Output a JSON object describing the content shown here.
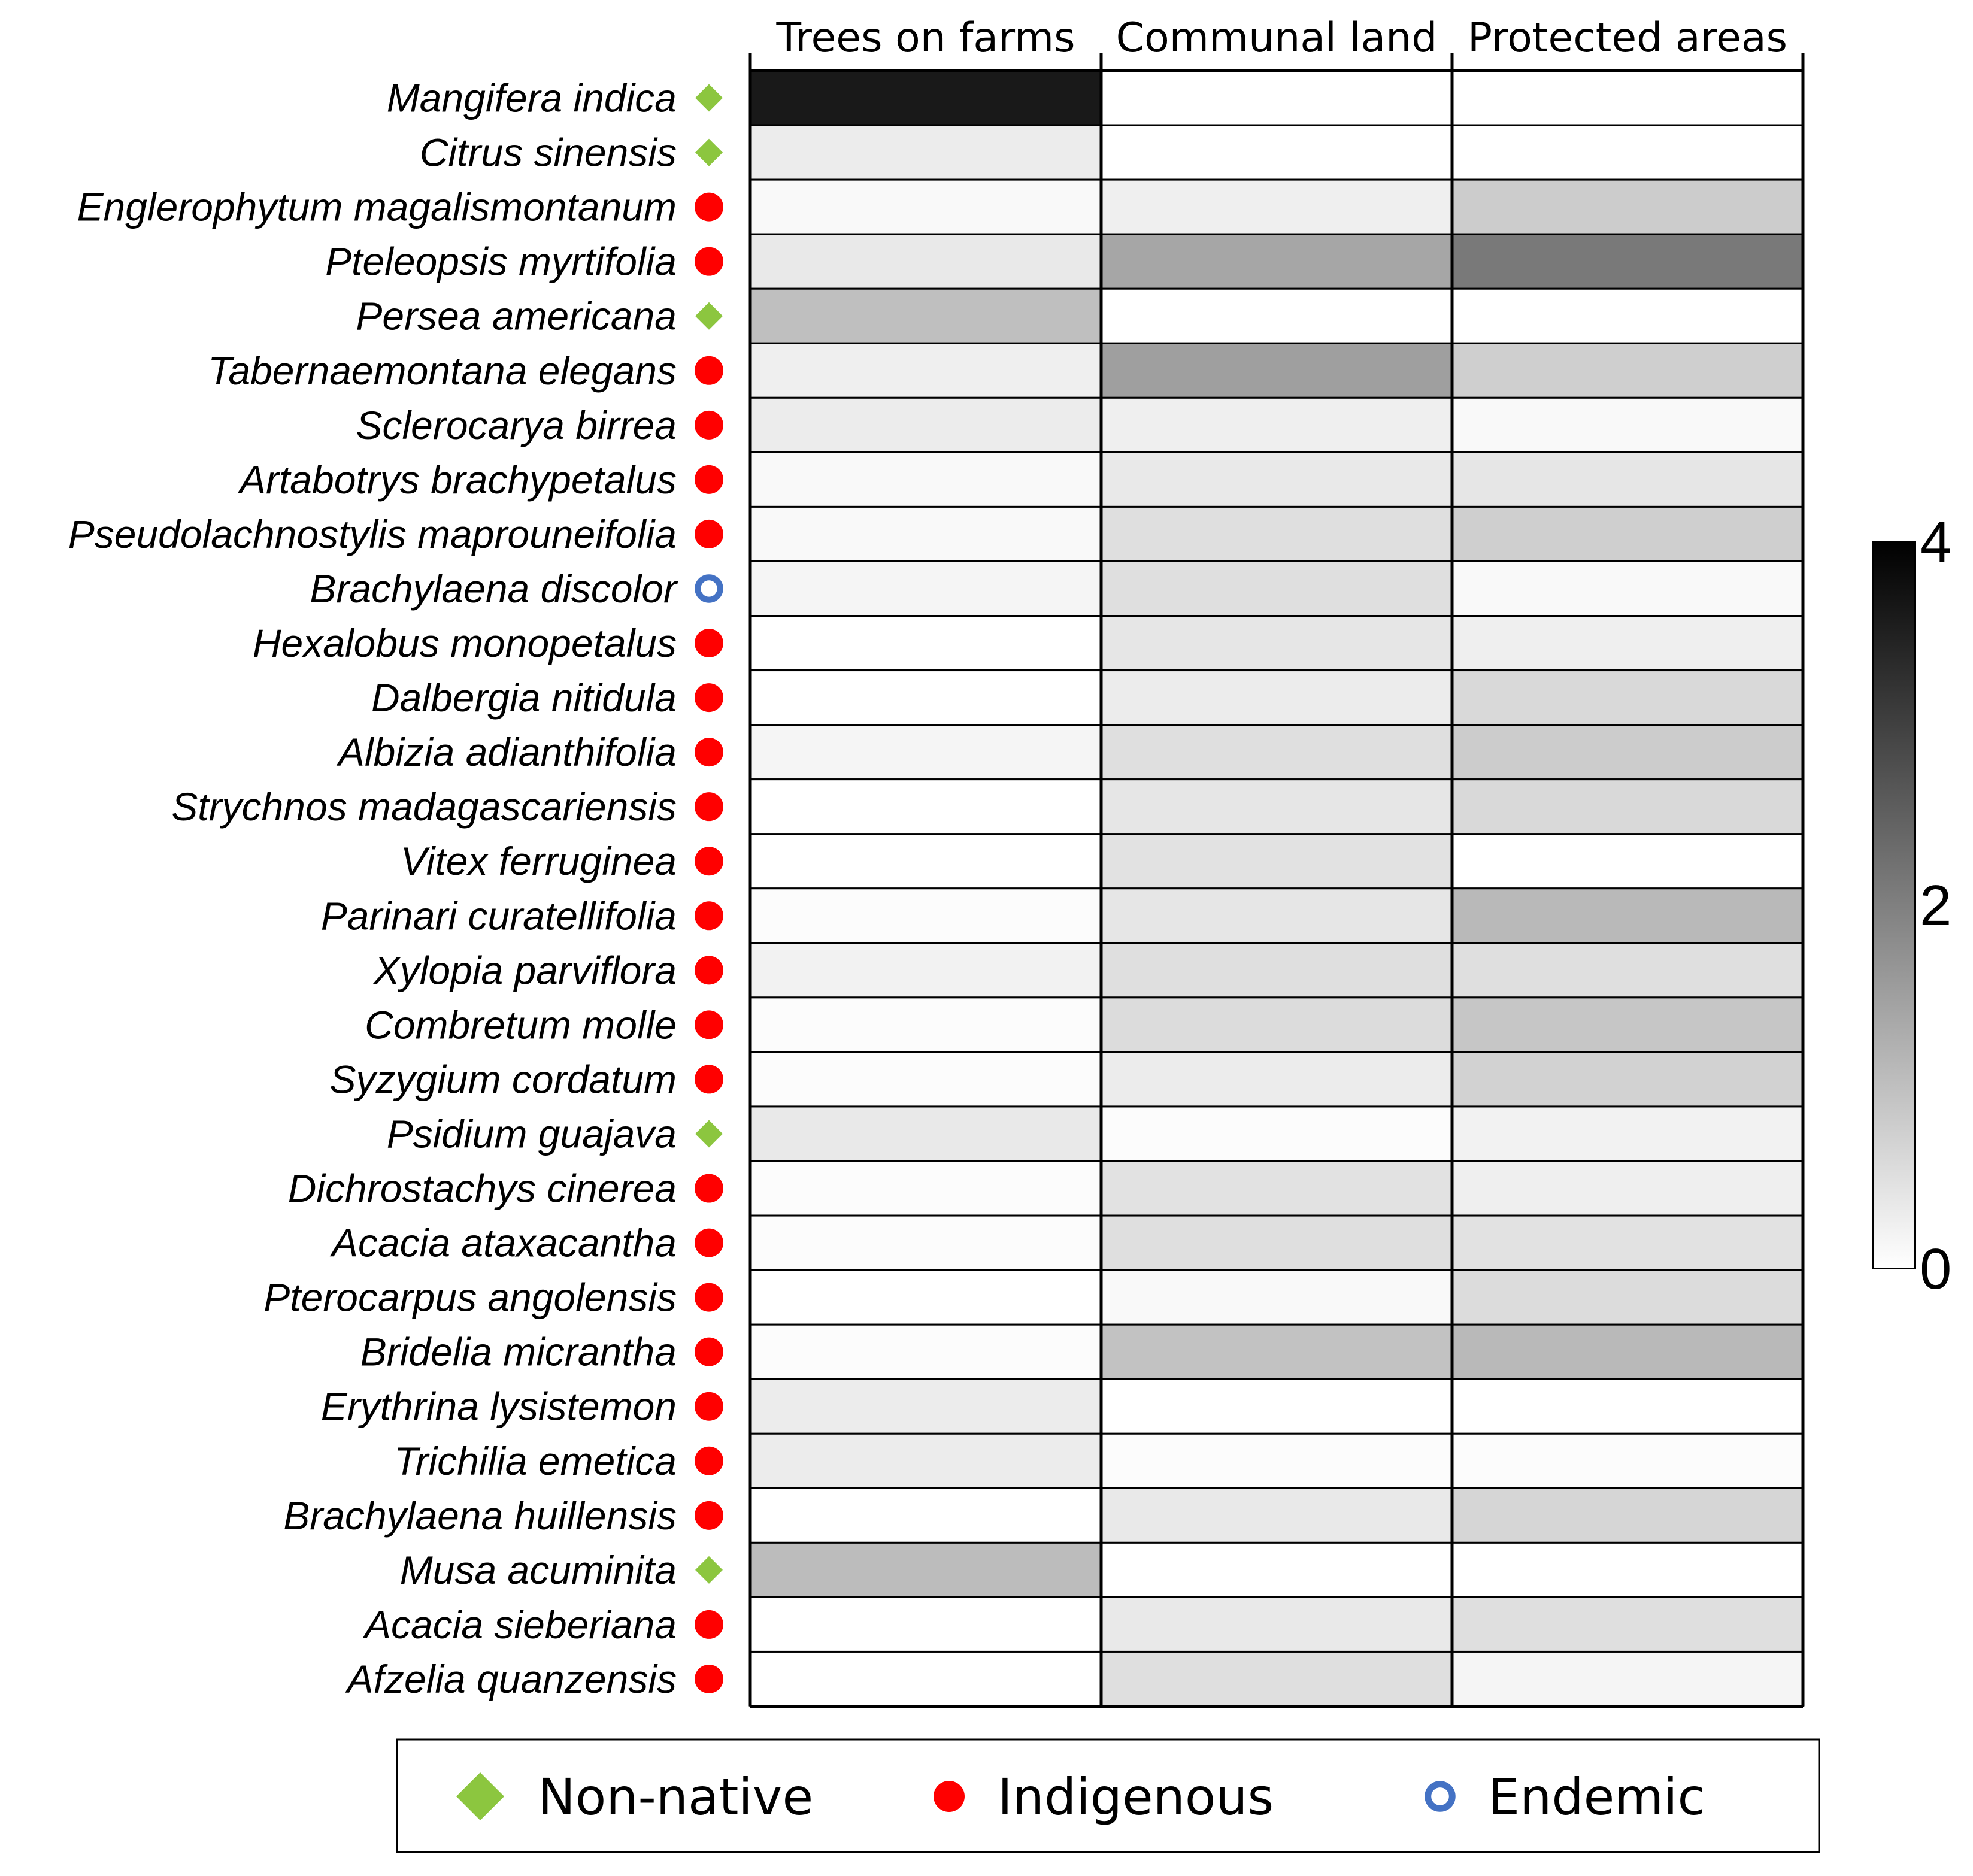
{
  "chart_data": {
    "type": "heatmap",
    "columns": [
      "Trees on farms",
      "Communal land",
      "Protected areas"
    ],
    "rows": [
      {
        "species": "Mangifera indica",
        "status": "non-native",
        "values": [
          3.6,
          0,
          0
        ]
      },
      {
        "species": "Citrus sinensis",
        "status": "non-native",
        "values": [
          0.3,
          0,
          0
        ]
      },
      {
        "species": "Englerophytum magalismontanum",
        "status": "indigenous",
        "values": [
          0.1,
          0.25,
          0.8
        ]
      },
      {
        "species": "Pteleopsis myrtifolia",
        "status": "indigenous",
        "values": [
          0.35,
          1.4,
          2.1
        ]
      },
      {
        "species": "Persea americana",
        "status": "non-native",
        "values": [
          1.0,
          0,
          0
        ]
      },
      {
        "species": "Tabernaemontana elegans",
        "status": "indigenous",
        "values": [
          0.25,
          1.5,
          0.75
        ]
      },
      {
        "species": "Sclerocarya birrea",
        "status": "indigenous",
        "values": [
          0.3,
          0.25,
          0.1
        ]
      },
      {
        "species": "Artabotrys brachypetalus",
        "status": "indigenous",
        "values": [
          0.1,
          0.35,
          0.4
        ]
      },
      {
        "species": "Pseudolachnostylis maprouneifolia",
        "status": "indigenous",
        "values": [
          0.1,
          0.5,
          0.75
        ]
      },
      {
        "species": "Brachylaena discolor",
        "status": "endemic",
        "values": [
          0.15,
          0.5,
          0.1
        ]
      },
      {
        "species": "Hexalobus monopetalus",
        "status": "indigenous",
        "values": [
          0,
          0.4,
          0.25
        ]
      },
      {
        "species": "Dalbergia nitidula",
        "status": "indigenous",
        "values": [
          0,
          0.3,
          0.6
        ]
      },
      {
        "species": "Albizia adianthifolia",
        "status": "indigenous",
        "values": [
          0.15,
          0.5,
          0.8
        ]
      },
      {
        "species": "Strychnos madagascariensis",
        "status": "indigenous",
        "values": [
          0,
          0.4,
          0.6
        ]
      },
      {
        "species": "Vitex ferruginea",
        "status": "indigenous",
        "values": [
          0,
          0.45,
          0
        ]
      },
      {
        "species": "Parinari curatellifolia",
        "status": "indigenous",
        "values": [
          0.05,
          0.4,
          1.1
        ]
      },
      {
        "species": "Xylopia parviflora",
        "status": "indigenous",
        "values": [
          0.2,
          0.5,
          0.5
        ]
      },
      {
        "species": "Combretum molle",
        "status": "indigenous",
        "values": [
          0.05,
          0.55,
          0.9
        ]
      },
      {
        "species": "Syzygium cordatum",
        "status": "indigenous",
        "values": [
          0.05,
          0.3,
          0.7
        ]
      },
      {
        "species": "Psidium guajava",
        "status": "non-native",
        "values": [
          0.35,
          0.05,
          0.2
        ]
      },
      {
        "species": "Dichrostachys cinerea",
        "status": "indigenous",
        "values": [
          0.05,
          0.45,
          0.25
        ]
      },
      {
        "species": "Acacia ataxacantha",
        "status": "indigenous",
        "values": [
          0.05,
          0.5,
          0.45
        ]
      },
      {
        "species": "Pterocarpus angolensis",
        "status": "indigenous",
        "values": [
          0,
          0.1,
          0.55
        ]
      },
      {
        "species": "Bridelia micrantha",
        "status": "indigenous",
        "values": [
          0.05,
          0.95,
          1.1
        ]
      },
      {
        "species": "Erythrina lysistemon",
        "status": "indigenous",
        "values": [
          0.3,
          0,
          0
        ]
      },
      {
        "species": "Trichilia emetica",
        "status": "indigenous",
        "values": [
          0.3,
          0.05,
          0.05
        ]
      },
      {
        "species": "Brachylaena huillensis",
        "status": "indigenous",
        "values": [
          0,
          0.35,
          0.65
        ]
      },
      {
        "species": "Musa acuminita",
        "status": "non-native",
        "values": [
          1.05,
          0,
          0
        ]
      },
      {
        "species": "Acacia sieberiana",
        "status": "indigenous",
        "values": [
          0,
          0.35,
          0.5
        ]
      },
      {
        "species": "Afzelia quanzensis",
        "status": "indigenous",
        "values": [
          0,
          0.5,
          0.15
        ]
      }
    ],
    "colorbar": {
      "min": 0,
      "max": 4,
      "ticks": [
        "4",
        "2",
        "0"
      ],
      "scale": "white-to-black"
    },
    "legend": [
      {
        "key": "non-native",
        "label": "Non-native",
        "marker": "diamond",
        "color": "#8cc63f"
      },
      {
        "key": "indigenous",
        "label": "Indigenous",
        "marker": "circle",
        "color": "#ff0000"
      },
      {
        "key": "endemic",
        "label": "Endemic",
        "marker": "ring",
        "color": "#4472c4"
      }
    ],
    "legend_placement": "bottom"
  }
}
